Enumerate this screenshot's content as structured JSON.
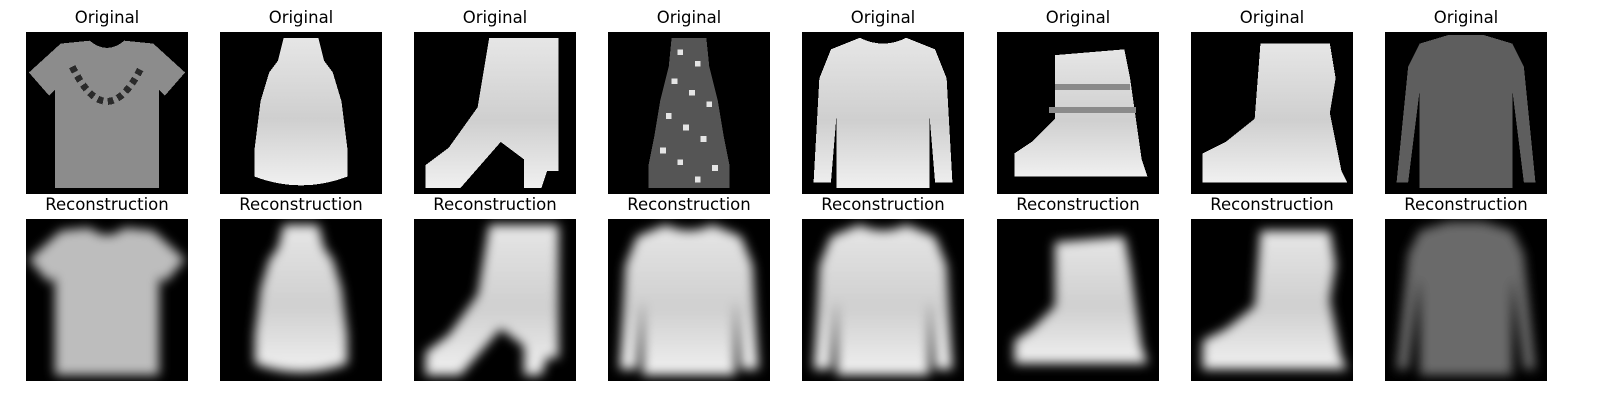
{
  "figure": {
    "rows": [
      {
        "name": "original",
        "title": "Original",
        "items": [
          {
            "label": "Original",
            "garment": "tshirt",
            "style": "sharp"
          },
          {
            "label": "Original",
            "garment": "dress",
            "style": "sharp"
          },
          {
            "label": "Original",
            "garment": "ankle-boot",
            "style": "sharp"
          },
          {
            "label": "Original",
            "garment": "patterned-dress",
            "style": "sharp"
          },
          {
            "label": "Original",
            "garment": "pullover",
            "style": "sharp"
          },
          {
            "label": "Original",
            "garment": "boot",
            "style": "sharp"
          },
          {
            "label": "Original",
            "garment": "boot-2",
            "style": "sharp"
          },
          {
            "label": "Original",
            "garment": "longsleeve",
            "style": "sharp"
          }
        ]
      },
      {
        "name": "reconstruction",
        "title": "Reconstruction",
        "items": [
          {
            "label": "Reconstruction",
            "garment": "tshirt",
            "style": "blurred"
          },
          {
            "label": "Reconstruction",
            "garment": "dress",
            "style": "blurred"
          },
          {
            "label": "Reconstruction",
            "garment": "ankle-boot",
            "style": "blurred"
          },
          {
            "label": "Reconstruction",
            "garment": "pullover",
            "style": "blurred"
          },
          {
            "label": "Reconstruction",
            "garment": "pullover",
            "style": "blurred"
          },
          {
            "label": "Reconstruction",
            "garment": "boot",
            "style": "blurred"
          },
          {
            "label": "Reconstruction",
            "garment": "boot-2",
            "style": "blurred"
          },
          {
            "label": "Reconstruction",
            "garment": "longsleeve",
            "style": "blurred"
          }
        ]
      }
    ],
    "colors": {
      "background": "#ffffff",
      "image_background": "#000000"
    }
  }
}
